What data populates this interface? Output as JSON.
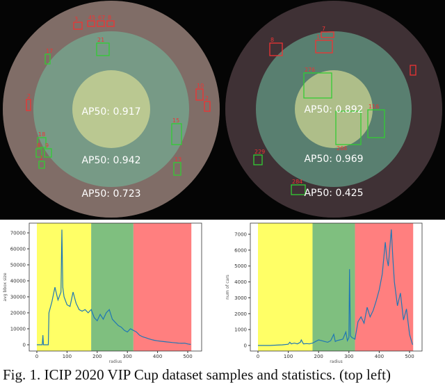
{
  "figure": {
    "caption": "Fig. 1. ICIP 2020 VIP Cup dataset samples and statistics. (top left)",
    "zone_colors": {
      "inner": "#ffff66",
      "middle": "#66bb66",
      "outer": "#ff6b6b"
    },
    "samples": [
      {
        "ap_labels": [
          "AP50: 0.917",
          "AP50: 0.942",
          "AP50: 0.723"
        ],
        "box_ids": [
          "3",
          "45",
          "67",
          "8",
          "21",
          "17",
          "2",
          "10",
          "2",
          "15",
          "18",
          "8",
          "9",
          "1",
          "13"
        ]
      },
      {
        "ap_labels": [
          "AP50: 0.892",
          "AP50: 0.969",
          "AP50: 0.425"
        ],
        "box_ids": [
          "8",
          "7",
          "1",
          "276",
          "266",
          "116",
          "229",
          "284"
        ]
      }
    ]
  },
  "chart_data": [
    {
      "type": "line",
      "xlabel": "radius",
      "ylabel": "avg bbox size",
      "xlim": [
        -20,
        530
      ],
      "ylim": [
        -3500,
        76000
      ],
      "xticks": [
        "0",
        "100",
        "200",
        "300",
        "400",
        "500"
      ],
      "yticks": [
        "0",
        "10000",
        "20000",
        "30000",
        "40000",
        "50000",
        "60000",
        "70000"
      ],
      "bands": [
        {
          "from": 0,
          "to": 180,
          "color": "#ffff66"
        },
        {
          "from": 180,
          "to": 320,
          "color": "#7fbf7f"
        },
        {
          "from": 320,
          "to": 512,
          "color": "#ff7f7f"
        }
      ],
      "series_color": "#1f77b4",
      "x": [
        0,
        10,
        18,
        20,
        22,
        30,
        38,
        40,
        50,
        60,
        70,
        80,
        83,
        86,
        90,
        100,
        110,
        120,
        130,
        140,
        150,
        160,
        170,
        180,
        190,
        200,
        210,
        220,
        230,
        240,
        250,
        260,
        270,
        280,
        290,
        300,
        310,
        320,
        330,
        340,
        350,
        360,
        370,
        380,
        390,
        400,
        410,
        420,
        430,
        440,
        450,
        460,
        470,
        480,
        490,
        500,
        510
      ],
      "values": [
        0,
        0,
        0,
        6000,
        0,
        0,
        0,
        20000,
        27000,
        36000,
        28000,
        33000,
        72000,
        36000,
        30000,
        25000,
        24000,
        33000,
        26000,
        22000,
        21000,
        22000,
        20000,
        22000,
        17000,
        15000,
        19000,
        16000,
        20000,
        22000,
        16000,
        14000,
        12000,
        11000,
        9000,
        8000,
        10000,
        9000,
        8000,
        6000,
        5000,
        4500,
        3800,
        3200,
        2800,
        2500,
        2200,
        2000,
        1800,
        1600,
        1400,
        1200,
        1000,
        900,
        1000,
        500,
        200
      ]
    },
    {
      "type": "line",
      "xlabel": "radius",
      "ylabel": "num of cars",
      "xlim": [
        -20,
        530
      ],
      "ylim": [
        -350,
        7600
      ],
      "xticks": [
        "0",
        "100",
        "200",
        "300",
        "400",
        "500"
      ],
      "yticks": [
        "0",
        "1000",
        "2000",
        "3000",
        "4000",
        "5000",
        "6000",
        "7000"
      ],
      "bands": [
        {
          "from": 0,
          "to": 180,
          "color": "#ffff66"
        },
        {
          "from": 180,
          "to": 320,
          "color": "#7fbf7f"
        },
        {
          "from": 320,
          "to": 512,
          "color": "#ff7f7f"
        }
      ],
      "series_color": "#1f77b4",
      "x": [
        0,
        20,
        40,
        60,
        80,
        100,
        105,
        110,
        120,
        130,
        140,
        143,
        150,
        160,
        170,
        180,
        190,
        200,
        210,
        220,
        230,
        240,
        250,
        255,
        260,
        270,
        280,
        290,
        295,
        300,
        302,
        305,
        310,
        320,
        330,
        340,
        350,
        360,
        370,
        380,
        390,
        400,
        410,
        420,
        425,
        430,
        440,
        445,
        450,
        460,
        470,
        480,
        490,
        500,
        510
      ],
      "values": [
        0,
        0,
        0,
        20,
        40,
        80,
        200,
        100,
        150,
        100,
        200,
        350,
        100,
        120,
        100,
        150,
        250,
        350,
        300,
        250,
        200,
        300,
        700,
        250,
        300,
        350,
        400,
        850,
        300,
        500,
        4800,
        600,
        500,
        400,
        1500,
        1800,
        1400,
        2400,
        1800,
        2200,
        2800,
        3500,
        4500,
        6500,
        5500,
        5000,
        7300,
        5500,
        4000,
        2500,
        3300,
        1600,
        2300,
        700,
        50
      ]
    }
  ]
}
